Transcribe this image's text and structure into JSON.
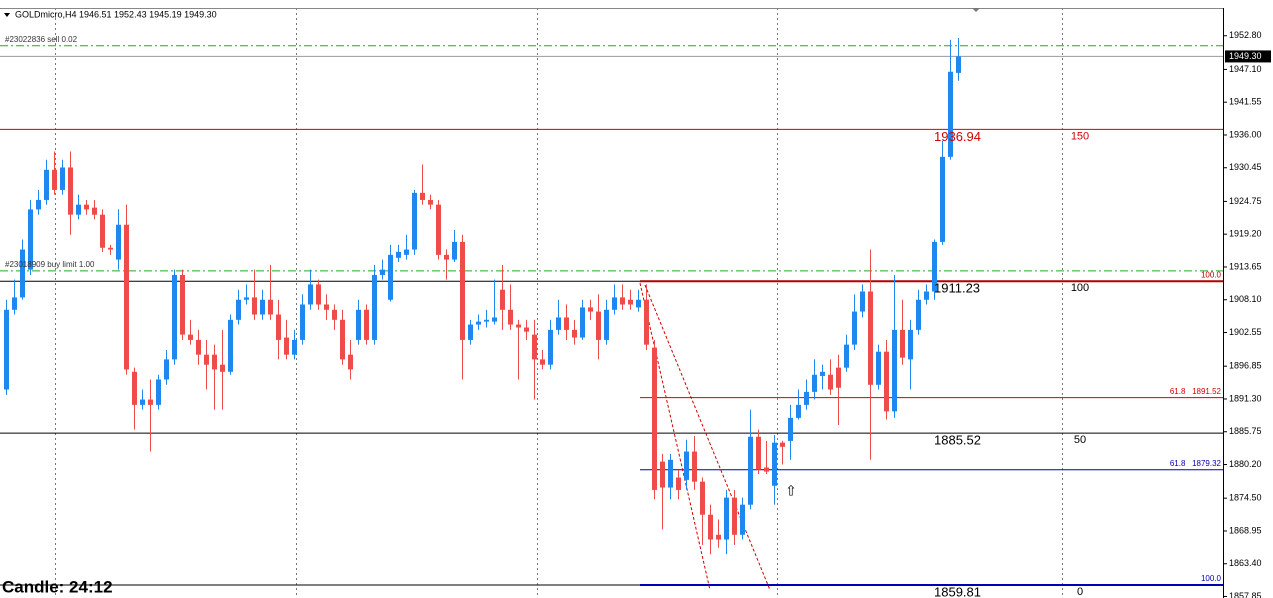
{
  "chart_data": {
    "type": "candlestick",
    "title": "GOLDmicro,H4  1946.51 1952.43 1945.19 1949.30",
    "timer": "Candle:  24:12",
    "ylim": [
      1857.6,
      1957.5
    ],
    "yticks": [
      {
        "value": 1952.8,
        "label": "1952.80"
      },
      {
        "value": 1947.1,
        "label": "1947.10"
      },
      1941.55,
      {
        "value": 1936.0,
        "label": "1936.00"
      },
      1930.45,
      1924.75,
      {
        "value": 1919.2,
        "label": "1919.20"
      },
      1913.65,
      {
        "value": 1908.1,
        "label": "1908.10"
      },
      1902.55,
      1896.85,
      {
        "value": 1891.3,
        "label": "1891.30"
      },
      1885.75,
      {
        "value": 1880.2,
        "label": "1880.20"
      },
      {
        "value": 1874.5,
        "label": "1874.50"
      },
      1868.95,
      {
        "value": 1863.4,
        "label": "1863.40"
      },
      1857.85
    ],
    "colors": {
      "up": "#1e88f0",
      "down": "#ee4b4b"
    },
    "bid": {
      "value": 1949.3,
      "label": "1949.30"
    },
    "orders": [
      {
        "label": "#23022836 sell 0.02",
        "price": 1951.1
      },
      {
        "label": "#23018909 buy limit 1.00",
        "price": 1913.0
      }
    ],
    "levels": [
      {
        "price": 1936.94,
        "level": 150,
        "color": "#d40000"
      },
      {
        "price": 1911.23,
        "level": 100,
        "color": "#000000"
      },
      {
        "price": 1885.52,
        "level": 50,
        "color": "#000000"
      },
      {
        "price": 1859.81,
        "level": 0,
        "color": "#000000"
      }
    ],
    "fib": [
      {
        "price": 1911.23,
        "label": "100.0",
        "color": "#b00000"
      },
      {
        "price": 1891.52,
        "label": "61.8   1891.52",
        "color": "#d40000"
      },
      {
        "price": 1879.32,
        "label": "61.8   1879.32",
        "color": "#0000b0"
      },
      {
        "price": 1859.81,
        "label": "100.0",
        "color": "#0000b0"
      }
    ],
    "ohlc": [
      [
        1892.9,
        1908.1,
        1892.0,
        1906.4
      ],
      [
        1906.4,
        1911.5,
        1905.6,
        1908.5
      ],
      [
        1908.5,
        1918.3,
        1908.1,
        1916.6
      ],
      [
        1913.2,
        1925.0,
        1912.3,
        1923.4
      ],
      [
        1923.4,
        1926.7,
        1922.5,
        1925.0
      ],
      [
        1925.0,
        1931.8,
        1924.2,
        1930.1
      ],
      [
        1930.1,
        1933.2,
        1925.9,
        1926.7
      ],
      [
        1926.7,
        1931.8,
        1925.9,
        1930.5
      ],
      [
        1930.5,
        1933.2,
        1919.1,
        1922.5
      ],
      [
        1922.5,
        1925.9,
        1921.7,
        1924.2
      ],
      [
        1924.2,
        1925.0,
        1922.5,
        1923.4
      ],
      [
        1923.7,
        1925.0,
        1921.7,
        1922.5
      ],
      [
        1922.5,
        1923.4,
        1916.2,
        1916.9
      ],
      [
        1916.9,
        1917.4,
        1915.7,
        1916.6
      ],
      [
        1914.9,
        1923.4,
        1913.2,
        1920.8
      ],
      [
        1920.8,
        1924.2,
        1895.4,
        1896.3
      ],
      [
        1895.9,
        1896.6,
        1886.1,
        1890.3
      ],
      [
        1890.3,
        1892.9,
        1889.5,
        1891.2
      ],
      [
        1891.2,
        1894.6,
        1882.4,
        1890.3
      ],
      [
        1890.3,
        1895.4,
        1889.5,
        1894.6
      ],
      [
        1894.6,
        1899.6,
        1893.7,
        1898.0
      ],
      [
        1898.0,
        1913.2,
        1897.1,
        1912.3
      ],
      [
        1912.3,
        1913.2,
        1901.3,
        1902.2
      ],
      [
        1902.2,
        1904.7,
        1900.5,
        1901.3
      ],
      [
        1901.3,
        1903.0,
        1897.1,
        1898.8
      ],
      [
        1898.8,
        1901.3,
        1892.9,
        1897.1
      ],
      [
        1898.8,
        1900.5,
        1889.5,
        1896.3
      ],
      [
        1897.1,
        1903.0,
        1889.5,
        1895.9
      ],
      [
        1895.9,
        1905.6,
        1895.4,
        1904.7
      ],
      [
        1904.7,
        1909.8,
        1903.9,
        1908.1
      ],
      [
        1908.1,
        1910.7,
        1907.3,
        1908.5
      ],
      [
        1908.5,
        1913.2,
        1904.7,
        1905.6
      ],
      [
        1905.6,
        1909.8,
        1904.7,
        1908.1
      ],
      [
        1908.1,
        1914.0,
        1904.7,
        1905.6
      ],
      [
        1905.6,
        1908.1,
        1898.0,
        1901.3
      ],
      [
        1901.7,
        1904.7,
        1898.0,
        1898.8
      ],
      [
        1898.8,
        1903.0,
        1898.0,
        1901.3
      ],
      [
        1901.3,
        1909.0,
        1900.5,
        1907.3
      ],
      [
        1907.3,
        1913.2,
        1906.4,
        1910.7
      ],
      [
        1910.7,
        1911.5,
        1906.4,
        1907.3
      ],
      [
        1907.3,
        1909.0,
        1904.7,
        1906.4
      ],
      [
        1906.4,
        1907.3,
        1903.0,
        1904.7
      ],
      [
        1904.7,
        1906.4,
        1897.1,
        1898.0
      ],
      [
        1898.8,
        1901.3,
        1894.6,
        1896.3
      ],
      [
        1901.3,
        1908.1,
        1900.5,
        1906.4
      ],
      [
        1906.4,
        1907.3,
        1900.5,
        1901.3
      ],
      [
        1901.3,
        1914.0,
        1900.5,
        1912.3
      ],
      [
        1912.3,
        1914.9,
        1911.5,
        1913.2
      ],
      [
        1908.1,
        1917.4,
        1907.8,
        1915.7
      ],
      [
        1915.2,
        1917.4,
        1914.5,
        1916.2
      ],
      [
        1915.7,
        1919.1,
        1914.9,
        1916.6
      ],
      [
        1916.6,
        1926.7,
        1915.7,
        1926.2
      ],
      [
        1926.2,
        1931.0,
        1924.2,
        1925.0
      ],
      [
        1925.0,
        1925.9,
        1923.4,
        1924.2
      ],
      [
        1924.2,
        1925.0,
        1914.9,
        1915.7
      ],
      [
        1915.7,
        1916.6,
        1911.5,
        1914.9
      ],
      [
        1914.9,
        1919.9,
        1914.5,
        1917.9
      ],
      [
        1917.9,
        1919.1,
        1894.6,
        1901.3
      ],
      [
        1901.3,
        1904.7,
        1900.5,
        1903.9
      ],
      [
        1903.9,
        1905.6,
        1903.0,
        1904.4
      ],
      [
        1904.4,
        1906.4,
        1903.4,
        1904.7
      ],
      [
        1904.4,
        1911.5,
        1903.9,
        1905.1
      ],
      [
        1909.8,
        1914.0,
        1903.0,
        1906.4
      ],
      [
        1906.4,
        1910.7,
        1903.0,
        1903.9
      ],
      [
        1903.9,
        1904.7,
        1894.6,
        1903.4
      ],
      [
        1903.4,
        1904.7,
        1901.3,
        1902.7
      ],
      [
        1902.2,
        1904.7,
        1891.2,
        1898.0
      ],
      [
        1898.0,
        1899.6,
        1896.3,
        1897.1
      ],
      [
        1897.1,
        1904.7,
        1896.3,
        1903.0
      ],
      [
        1903.0,
        1908.1,
        1902.2,
        1905.1
      ],
      [
        1905.1,
        1907.3,
        1901.3,
        1903.0
      ],
      [
        1903.0,
        1904.7,
        1900.5,
        1901.7
      ],
      [
        1901.7,
        1908.1,
        1901.3,
        1906.8
      ],
      [
        1906.8,
        1908.1,
        1904.7,
        1906.1
      ],
      [
        1906.1,
        1909.0,
        1898.0,
        1901.3
      ],
      [
        1901.3,
        1908.1,
        1900.5,
        1906.4
      ],
      [
        1906.4,
        1910.7,
        1905.6,
        1908.5
      ],
      [
        1908.5,
        1910.7,
        1906.4,
        1907.3
      ],
      [
        1908.1,
        1909.8,
        1906.4,
        1907.3
      ],
      [
        1906.8,
        1909.8,
        1906.1,
        1908.1
      ],
      [
        1908.1,
        1910.7,
        1899.6,
        1900.5
      ],
      [
        1900.0,
        1901.3,
        1874.3,
        1875.9
      ],
      [
        1880.7,
        1882.0,
        1869.2,
        1876.3
      ],
      [
        1876.3,
        1882.0,
        1874.3,
        1881.0
      ],
      [
        1878.0,
        1879.3,
        1874.3,
        1875.9
      ],
      [
        1877.6,
        1884.4,
        1875.9,
        1882.4
      ],
      [
        1882.4,
        1885.0,
        1875.9,
        1877.3
      ],
      [
        1877.3,
        1878.0,
        1866.6,
        1871.7
      ],
      [
        1871.7,
        1873.4,
        1865.0,
        1867.5
      ],
      [
        1868.3,
        1870.9,
        1866.1,
        1867.5
      ],
      [
        1867.5,
        1875.9,
        1865.0,
        1874.6
      ],
      [
        1874.6,
        1875.9,
        1866.6,
        1868.3
      ],
      [
        1868.3,
        1874.6,
        1867.5,
        1873.4
      ],
      [
        1873.4,
        1889.5,
        1872.6,
        1884.9
      ],
      [
        1884.9,
        1886.1,
        1878.6,
        1879.3
      ],
      [
        1879.7,
        1884.2,
        1878.6,
        1879.0
      ],
      [
        1876.6,
        1885.2,
        1873.4,
        1883.9
      ],
      [
        1883.9,
        1884.2,
        1880.2,
        1883.2
      ],
      [
        1884.2,
        1890.3,
        1881.0,
        1888.1
      ],
      [
        1888.1,
        1892.9,
        1887.8,
        1890.3
      ],
      [
        1890.3,
        1894.6,
        1889.5,
        1892.5
      ],
      [
        1892.5,
        1898.0,
        1891.2,
        1895.4
      ],
      [
        1895.2,
        1897.1,
        1892.9,
        1895.9
      ],
      [
        1895.4,
        1898.0,
        1892.0,
        1892.9
      ],
      [
        1896.6,
        1898.8,
        1886.9,
        1893.2
      ],
      [
        1896.6,
        1902.2,
        1895.9,
        1900.5
      ],
      [
        1900.5,
        1909.0,
        1899.6,
        1906.1
      ],
      [
        1906.1,
        1910.7,
        1905.1,
        1909.5
      ],
      [
        1909.5,
        1916.6,
        1881.0,
        1893.7
      ],
      [
        1893.7,
        1900.5,
        1892.9,
        1899.3
      ],
      [
        1899.3,
        1901.3,
        1887.8,
        1889.2
      ],
      [
        1889.2,
        1912.3,
        1888.1,
        1903.0
      ],
      [
        1903.0,
        1908.1,
        1897.1,
        1898.3
      ],
      [
        1898.0,
        1904.7,
        1892.9,
        1903.0
      ],
      [
        1903.0,
        1909.8,
        1902.2,
        1908.1
      ],
      [
        1908.1,
        1910.7,
        1907.3,
        1909.5
      ],
      [
        1909.5,
        1918.3,
        1908.1,
        1917.9
      ],
      [
        1917.9,
        1935.0,
        1917.4,
        1932.3
      ],
      [
        1932.3,
        1952.1,
        1931.8,
        1946.7
      ],
      [
        1946.51,
        1952.43,
        1945.19,
        1949.3
      ]
    ]
  }
}
